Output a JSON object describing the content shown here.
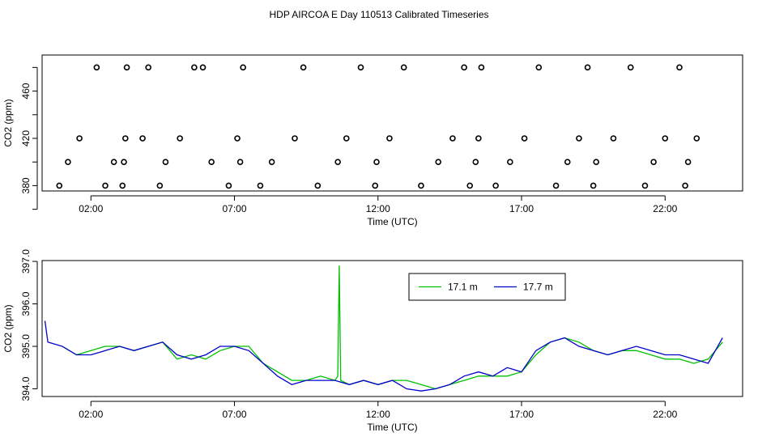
{
  "title": "HDP AIRCOA E  Day 110513  Calibrated Timeseries",
  "colors": {
    "green": "#00c000",
    "blue": "#0000cc",
    "axis": "#000000"
  },
  "chart_data": [
    {
      "type": "scatter",
      "title": "HDP AIRCOA E  Day 110513  Calibrated Timeseries",
      "xlabel": "Time (UTC)",
      "ylabel": "CO2 (ppm)",
      "x_ticks": [
        2,
        7,
        12,
        17,
        22
      ],
      "x_tick_labels": [
        "02:00",
        "07:00",
        "12:00",
        "17:00",
        "22:00"
      ],
      "y_ticks": [
        360,
        380,
        400,
        420,
        440,
        460,
        480
      ],
      "y_tick_labels": [
        "380",
        "420",
        "460"
      ],
      "xlim": [
        0.3,
        24.7
      ],
      "ylim": [
        375.5,
        490.5
      ],
      "series": [
        {
          "name": "",
          "x": [
            0.9,
            1.2,
            1.6,
            2.2,
            2.5,
            2.8,
            3.1,
            3.15,
            3.2,
            3.25,
            3.8,
            4.0,
            4.4,
            4.6,
            5.1,
            5.6,
            5.9,
            6.2,
            6.8,
            7.1,
            7.2,
            7.3,
            7.9,
            8.3,
            9.1,
            9.4,
            9.9,
            10.6,
            10.9,
            11.4,
            11.9,
            11.95,
            12.4,
            12.9,
            13.5,
            14.1,
            14.6,
            15.0,
            15.2,
            15.4,
            15.5,
            15.6,
            16.1,
            16.6,
            17.1,
            17.6,
            18.2,
            18.6,
            19.0,
            19.3,
            19.5,
            19.6,
            20.2,
            20.8,
            21.3,
            21.6,
            22.0,
            22.5,
            22.7,
            22.8,
            23.1
          ],
          "y": [
            380.0,
            400.0,
            420.0,
            480.0,
            380.0,
            400.0,
            380.0,
            400.0,
            420.0,
            480.0,
            420.0,
            480.0,
            380.0,
            400.0,
            420.0,
            480.0,
            480.0,
            400.0,
            380.0,
            420.0,
            400.0,
            480.0,
            380.0,
            400.0,
            420.0,
            480.0,
            380.0,
            400.0,
            420.0,
            480.0,
            380.0,
            400.0,
            420.0,
            480.0,
            380.0,
            400.0,
            420.0,
            480.0,
            380.0,
            400.0,
            420.0,
            480.0,
            380.0,
            400.0,
            420.0,
            480.0,
            380.0,
            400.0,
            420.0,
            480.0,
            380.0,
            400.0,
            420.0,
            480.0,
            380.0,
            400.0,
            420.0,
            480.0,
            380.0,
            400.0,
            420.0
          ]
        }
      ]
    },
    {
      "type": "line",
      "xlabel": "Time (UTC)",
      "ylabel": "CO2 (ppm)",
      "x_ticks": [
        2,
        7,
        12,
        17,
        22
      ],
      "x_tick_labels": [
        "02:00",
        "07:00",
        "12:00",
        "17:00",
        "22:00"
      ],
      "y_ticks": [
        394.0,
        395.0,
        396.0,
        397.0
      ],
      "y_tick_labels": [
        "394.0",
        "395.0",
        "396.0",
        "397.0"
      ],
      "xlim": [
        0.3,
        24.7
      ],
      "ylim": [
        393.82,
        397.02
      ],
      "legend": {
        "position": "top-right",
        "entries": [
          "17.1 m",
          "17.7 m"
        ]
      },
      "series": [
        {
          "name": "17.1 m",
          "x": [
            1.0,
            1.5,
            2.0,
            2.5,
            3.0,
            3.5,
            4.0,
            4.5,
            5.0,
            5.5,
            6.0,
            6.5,
            7.0,
            7.5,
            8.0,
            8.5,
            9.0,
            9.5,
            10.0,
            10.5,
            10.6,
            10.65,
            10.7,
            11.0,
            11.5,
            12.0,
            12.5,
            13.0,
            13.5,
            14.0,
            14.5,
            15.0,
            15.5,
            16.0,
            16.5,
            17.0,
            17.5,
            18.0,
            18.5,
            19.0,
            19.5,
            20.0,
            20.5,
            21.0,
            21.5,
            22.0,
            22.5,
            23.0,
            23.5,
            24.0
          ],
          "y": [
            395.0,
            394.8,
            394.9,
            395.0,
            395.0,
            394.9,
            395.0,
            395.1,
            394.7,
            394.8,
            394.7,
            394.9,
            395.0,
            395.0,
            394.6,
            394.4,
            394.2,
            394.2,
            394.3,
            394.2,
            394.3,
            396.9,
            394.2,
            394.1,
            394.2,
            394.1,
            394.2,
            394.2,
            394.1,
            394.0,
            394.1,
            394.2,
            394.3,
            394.3,
            394.3,
            394.4,
            394.8,
            395.1,
            395.2,
            395.1,
            394.9,
            394.8,
            394.9,
            394.9,
            394.8,
            394.7,
            394.7,
            394.6,
            394.7,
            395.1
          ]
        },
        {
          "name": "17.7 m",
          "x": [
            0.4,
            0.5,
            1.0,
            1.5,
            2.0,
            2.5,
            3.0,
            3.5,
            4.0,
            4.5,
            5.0,
            5.5,
            6.0,
            6.5,
            7.0,
            7.5,
            8.0,
            8.5,
            9.0,
            9.5,
            10.0,
            10.5,
            11.0,
            11.5,
            12.0,
            12.5,
            13.0,
            13.5,
            14.0,
            14.5,
            15.0,
            15.5,
            16.0,
            16.5,
            17.0,
            17.5,
            18.0,
            18.5,
            19.0,
            19.5,
            20.0,
            20.5,
            21.0,
            21.5,
            22.0,
            22.5,
            23.0,
            23.5,
            24.0
          ],
          "y": [
            395.6,
            395.1,
            395.0,
            394.8,
            394.8,
            394.9,
            395.0,
            394.9,
            395.0,
            395.1,
            394.8,
            394.7,
            394.8,
            395.0,
            395.0,
            394.9,
            394.6,
            394.3,
            394.1,
            394.2,
            394.2,
            394.2,
            394.1,
            394.2,
            394.1,
            394.2,
            394.0,
            393.95,
            394.0,
            394.1,
            394.3,
            394.4,
            394.3,
            394.5,
            394.4,
            394.9,
            395.1,
            395.2,
            395.0,
            394.9,
            394.8,
            394.9,
            395.0,
            394.9,
            394.8,
            394.8,
            394.7,
            394.6,
            395.2
          ]
        }
      ]
    }
  ]
}
